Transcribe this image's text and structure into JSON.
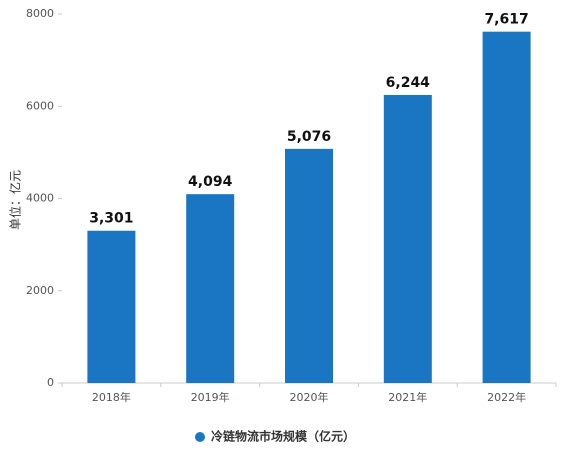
{
  "chart_data": {
    "type": "bar",
    "y_label": "单位：亿元",
    "categories": [
      "2018年",
      "2019年",
      "2020年",
      "2021年",
      "2022年"
    ],
    "series": [
      {
        "name": "冷链物流市场规模（亿元）",
        "color": "#1a76c2",
        "values": [
          3301,
          4094,
          5076,
          6244,
          7617
        ],
        "value_labels": [
          "3,301",
          "4,094",
          "5,076",
          "6,244",
          "7,617"
        ]
      }
    ],
    "ylim": [
      0,
      8000
    ],
    "yticks": [
      0,
      2000,
      4000,
      6000,
      8000
    ],
    "grid": false
  }
}
